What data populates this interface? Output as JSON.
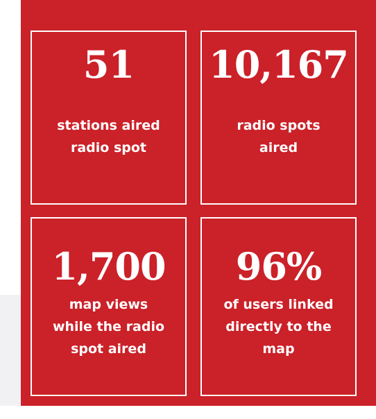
{
  "stats": [
    {
      "value": "51",
      "label_lines": [
        "stations aired",
        "radio spot"
      ]
    },
    {
      "value": "10,167",
      "label_lines": [
        "radio spots",
        "aired"
      ]
    },
    {
      "value": "1,700",
      "label_lines": [
        "map views",
        "while the radio",
        "spot aired"
      ]
    },
    {
      "value": "96%",
      "label_lines": [
        "of users linked",
        "directly to the",
        "map"
      ]
    }
  ]
}
